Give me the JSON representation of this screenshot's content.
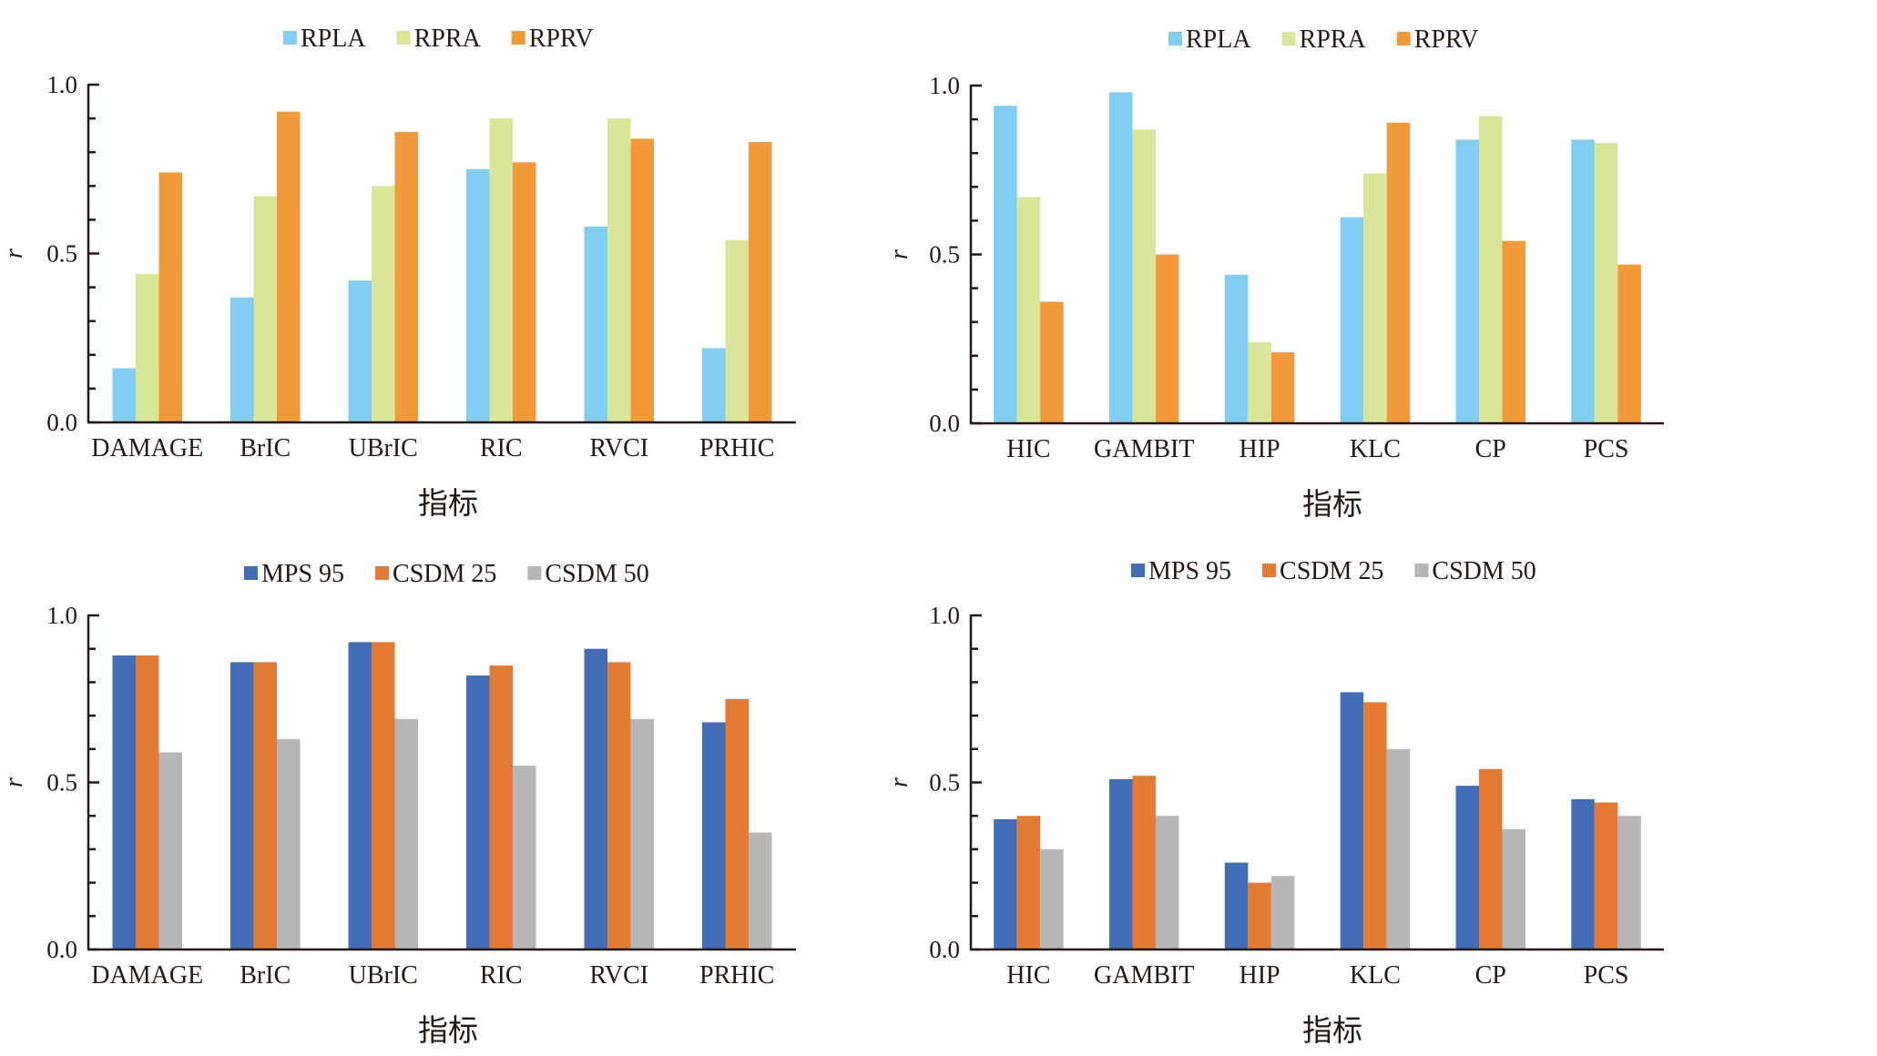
{
  "figure": {
    "panels": 4
  },
  "chart_data": [
    {
      "type": "bar",
      "id": "top-left",
      "title": "",
      "xlabel": "指标",
      "ylabel": "r",
      "ylim": [
        0,
        1.0
      ],
      "yticks": [
        "0.0",
        "0.5",
        "1.0"
      ],
      "minor_tick_step": 0.1,
      "grid": false,
      "legend_position": "top-center",
      "categories": [
        "DAMAGE",
        "BrIC",
        "UBrIC",
        "RIC",
        "RVCI",
        "PRHIC"
      ],
      "series": [
        {
          "name": "RPLA",
          "color": "#82CEF2",
          "values": [
            0.16,
            0.37,
            0.42,
            0.75,
            0.58,
            0.22
          ]
        },
        {
          "name": "RPRA",
          "color": "#D9E697",
          "values": [
            0.44,
            0.67,
            0.7,
            0.9,
            0.9,
            0.54
          ]
        },
        {
          "name": "RPRV",
          "color": "#F2993A",
          "values": [
            0.74,
            0.92,
            0.86,
            0.77,
            0.84,
            0.83
          ]
        }
      ]
    },
    {
      "type": "bar",
      "id": "top-right",
      "title": "",
      "xlabel": "指标",
      "ylabel": "r",
      "ylim": [
        0,
        1.0
      ],
      "yticks": [
        "0.0",
        "0.5",
        "1.0"
      ],
      "minor_tick_step": 0.1,
      "grid": false,
      "legend_position": "top-center",
      "categories": [
        "HIC",
        "GAMBIT",
        "HIP",
        "KLC",
        "CP",
        "PCS"
      ],
      "series": [
        {
          "name": "RPLA",
          "color": "#82CEF2",
          "values": [
            0.94,
            0.98,
            0.44,
            0.61,
            0.84,
            0.84
          ]
        },
        {
          "name": "RPRA",
          "color": "#D9E697",
          "values": [
            0.67,
            0.87,
            0.24,
            0.74,
            0.91,
            0.83
          ]
        },
        {
          "name": "RPRV",
          "color": "#F2993A",
          "values": [
            0.36,
            0.5,
            0.21,
            0.89,
            0.54,
            0.47
          ]
        }
      ]
    },
    {
      "type": "bar",
      "id": "bottom-left",
      "title": "",
      "xlabel": "指标",
      "ylabel": "r",
      "ylim": [
        0,
        1.0
      ],
      "yticks": [
        "0.0",
        "0.5",
        "1.0"
      ],
      "minor_tick_step": 0.1,
      "grid": false,
      "legend_position": "top-center",
      "categories": [
        "DAMAGE",
        "BrIC",
        "UBrIC",
        "RIC",
        "RVCI",
        "PRHIC"
      ],
      "series": [
        {
          "name": "MPS 95",
          "color": "#416EB6",
          "values": [
            0.88,
            0.86,
            0.92,
            0.82,
            0.9,
            0.68
          ]
        },
        {
          "name": "CSDM 25",
          "color": "#E37B35",
          "values": [
            0.88,
            0.86,
            0.92,
            0.85,
            0.86,
            0.75
          ]
        },
        {
          "name": "CSDM 50",
          "color": "#B5B6B6",
          "values": [
            0.59,
            0.63,
            0.69,
            0.55,
            0.69,
            0.35
          ]
        }
      ]
    },
    {
      "type": "bar",
      "id": "bottom-right",
      "title": "",
      "xlabel": "指标",
      "ylabel": "r",
      "ylim": [
        0,
        1.0
      ],
      "yticks": [
        "0.0",
        "0.5",
        "1.0"
      ],
      "minor_tick_step": 0.1,
      "grid": false,
      "legend_position": "top-center",
      "categories": [
        "HIC",
        "GAMBIT",
        "HIP",
        "KLC",
        "CP",
        "PCS"
      ],
      "series": [
        {
          "name": "MPS 95",
          "color": "#416EB6",
          "values": [
            0.39,
            0.51,
            0.26,
            0.77,
            0.49,
            0.45
          ]
        },
        {
          "name": "CSDM 25",
          "color": "#E37B35",
          "values": [
            0.4,
            0.52,
            0.2,
            0.74,
            0.54,
            0.44
          ]
        },
        {
          "name": "CSDM 50",
          "color": "#B5B6B6",
          "values": [
            0.3,
            0.4,
            0.22,
            0.6,
            0.36,
            0.4
          ]
        }
      ]
    }
  ]
}
